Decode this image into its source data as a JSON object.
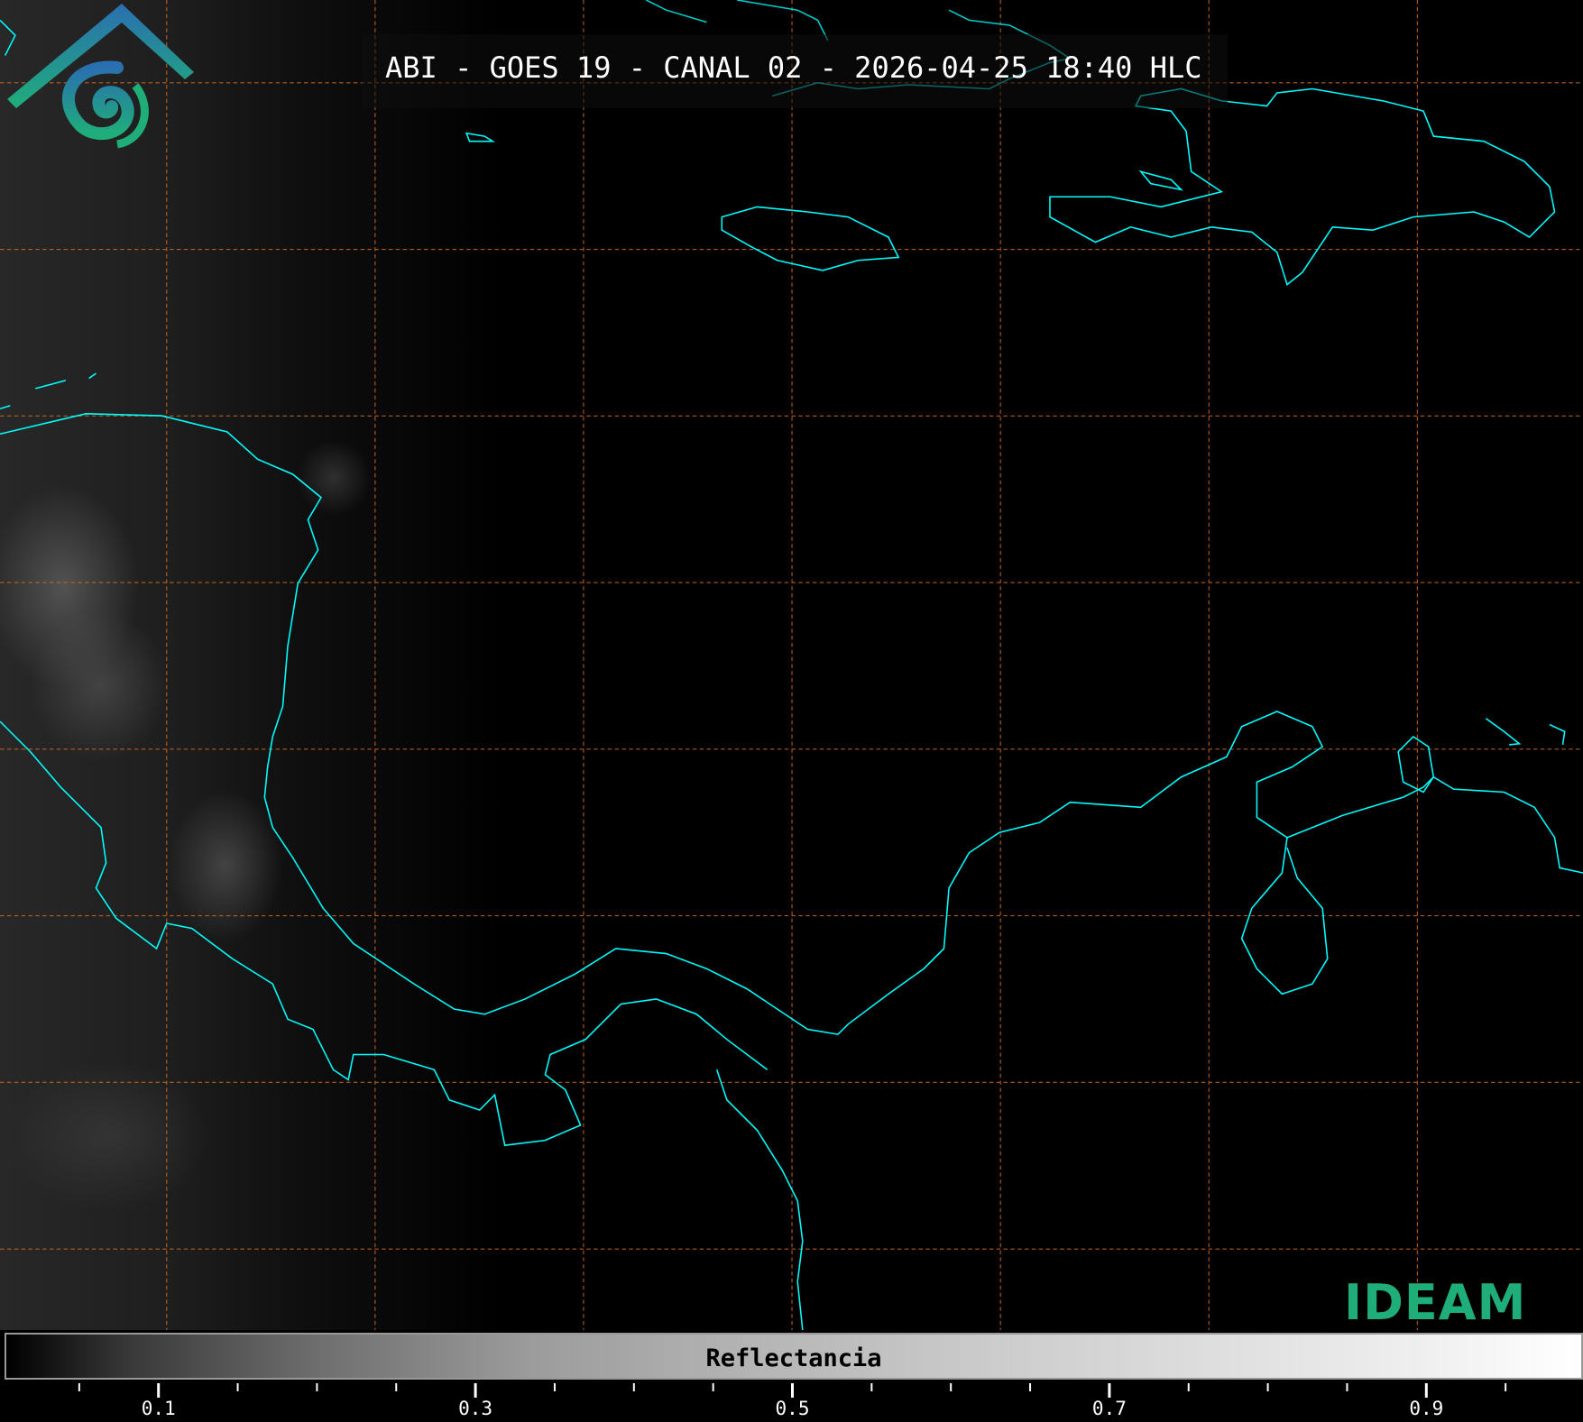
{
  "title": "ABI - GOES 19 - CANAL 02 - 2026-04-25 18:40 HLC",
  "colorbar": {
    "label": "Reflectancia",
    "range": [
      0,
      1
    ],
    "colormap": "grayscale black-to-white",
    "major_ticks": [
      "0.1",
      "0.3",
      "0.5",
      "0.7",
      "0.9"
    ],
    "minor_tick_step": 0.05
  },
  "logo": {
    "text": "IDEAM",
    "text_color": "#1fae7a",
    "roof_color": "#2a6fb0"
  },
  "colors": {
    "coastline": "#00ffff",
    "gridline": "#d2691e",
    "background": "#000000"
  }
}
